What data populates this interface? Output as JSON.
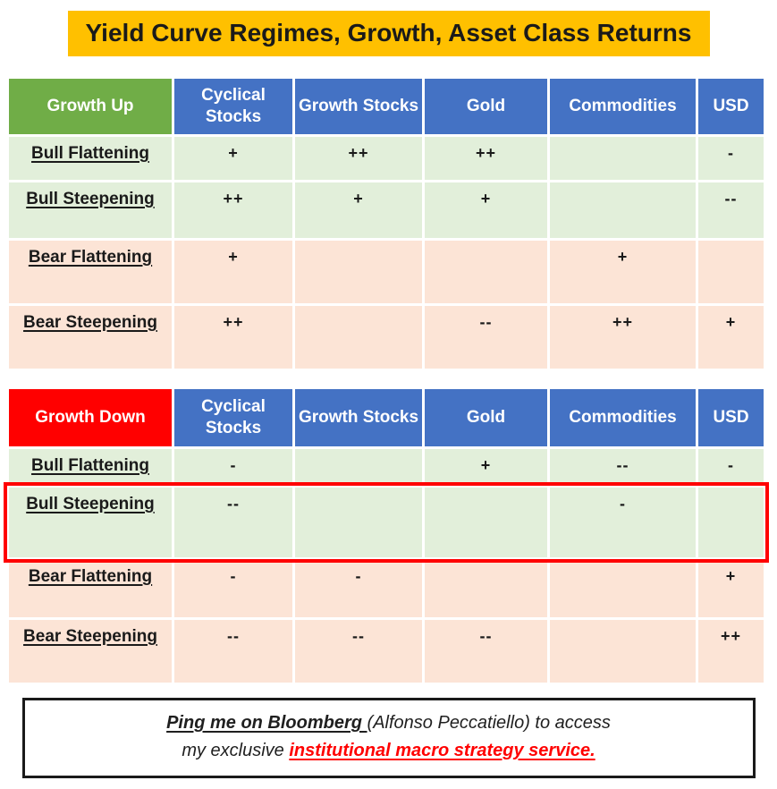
{
  "title": "Yield Curve Regimes, Growth, Asset Class Returns",
  "colors": {
    "title_bg": "#FFC000",
    "growth_up_bg": "#70AD47",
    "growth_down_bg": "#FF0000",
    "column_header_bg": "#4472C4",
    "bull_row_bg": "#E2EFDA",
    "bear_row_bg": "#FCE4D6",
    "highlight_border": "#FF0000"
  },
  "columns": [
    "Cyclical Stocks",
    "Growth Stocks",
    "Gold",
    "Commodities",
    "USD"
  ],
  "chart_data": {
    "type": "table",
    "title": "Yield Curve Regimes, Growth, Asset Class Returns",
    "tables": [
      {
        "name": "Growth Up",
        "columns": [
          "Cyclical Stocks",
          "Growth Stocks",
          "Gold",
          "Commodities",
          "USD"
        ],
        "rows": [
          {
            "label": "Bull Flattening",
            "cells": [
              "+",
              "++",
              "++",
              "",
              "-"
            ]
          },
          {
            "label": "Bull Steepening",
            "cells": [
              "++",
              "+",
              "+",
              "",
              "--"
            ]
          },
          {
            "label": "Bear Flattening",
            "cells": [
              "+",
              "",
              "",
              "+",
              ""
            ]
          },
          {
            "label": "Bear Steepening",
            "cells": [
              "++",
              "",
              "--",
              "++",
              "+"
            ]
          }
        ]
      },
      {
        "name": "Growth Down",
        "columns": [
          "Cyclical Stocks",
          "Growth Stocks",
          "Gold",
          "Commodities",
          "USD"
        ],
        "rows": [
          {
            "label": "Bull Flattening",
            "cells": [
              "-",
              "",
              "+",
              "--",
              "-"
            ]
          },
          {
            "label": "Bull Steepening",
            "highlighted": true,
            "cells": [
              "--",
              "",
              "",
              "-",
              ""
            ]
          },
          {
            "label": "Bear Flattening",
            "cells": [
              "-",
              "-",
              "",
              "",
              "+"
            ]
          },
          {
            "label": "Bear Steepening",
            "cells": [
              "--",
              "--",
              "--",
              "",
              "++"
            ]
          }
        ]
      }
    ]
  },
  "tables": [
    {
      "name": "Growth Up",
      "rows": [
        {
          "label": "Bull Flattening",
          "cells": [
            "+",
            "++",
            "++",
            "",
            "-"
          ]
        },
        {
          "label": "Bull Steepening",
          "cells": [
            "++",
            "+",
            "+",
            "",
            "--"
          ]
        },
        {
          "label": "Bear Flattening",
          "cells": [
            "+",
            "",
            "",
            "+",
            ""
          ]
        },
        {
          "label": "Bear Steepening",
          "cells": [
            "++",
            "",
            "--",
            "++",
            "+"
          ]
        }
      ]
    },
    {
      "name": "Growth Down",
      "rows": [
        {
          "label": "Bull Flattening",
          "cells": [
            "-",
            "",
            "+",
            "--",
            "-"
          ]
        },
        {
          "label": "Bull Steepening",
          "cells": [
            "--",
            "",
            "",
            "-",
            ""
          ]
        },
        {
          "label": "Bear Flattening",
          "cells": [
            "-",
            "-",
            "",
            "",
            "+"
          ]
        },
        {
          "label": "Bear Steepening",
          "cells": [
            "--",
            "--",
            "--",
            "",
            "++"
          ]
        }
      ]
    }
  ],
  "footer": {
    "ping_bold": "Ping me on Bloomberg ",
    "line1_rest": "(Alfonso Peccatiello) to access",
    "line2_prefix": "my exclusive ",
    "line2_highlight": "institutional macro strategy service."
  }
}
